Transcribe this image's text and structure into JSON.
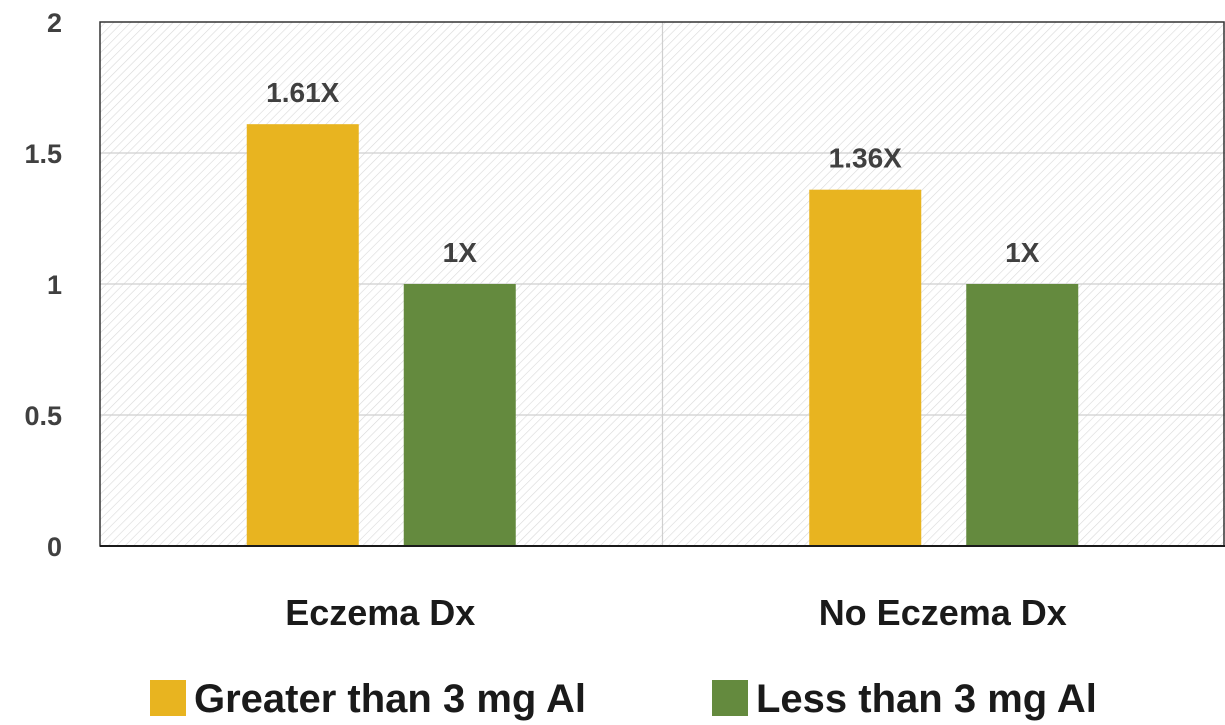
{
  "chart_data": {
    "type": "bar",
    "categories": [
      "Eczema Dx",
      "No Eczema Dx"
    ],
    "series": [
      {
        "name": "Greater than 3 mg Al",
        "values": [
          1.61,
          1.36
        ],
        "labels": [
          "1.61X",
          "1.36X"
        ],
        "color": "#E8B420"
      },
      {
        "name": "Less than 3 mg Al",
        "values": [
          1,
          1
        ],
        "labels": [
          "1X",
          "1X"
        ],
        "color": "#648A3E"
      }
    ],
    "yticks": [
      0,
      0.5,
      1,
      1.5,
      2
    ],
    "ylim": [
      0,
      2
    ],
    "grid": true,
    "legend": "bottom",
    "colors": {
      "plot_border": "#333333",
      "hatch": "#d6d6d6",
      "grid": "#cfcfcf"
    }
  }
}
